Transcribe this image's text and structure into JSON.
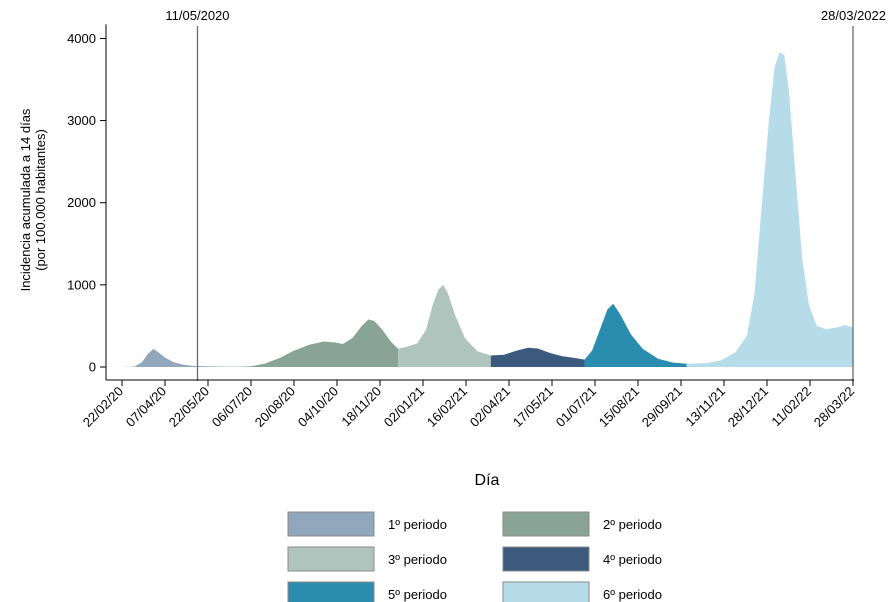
{
  "chart_data": {
    "type": "area",
    "xlabel": "Día",
    "ylabel_lines": [
      "Incidencia acumulada a 14 días",
      "(por 100.000 habitantes)"
    ],
    "ylim": [
      0,
      4200
    ],
    "yticks": [
      0,
      1000,
      2000,
      3000,
      4000
    ],
    "xlim": [
      "2020-02-22",
      "2022-03-28"
    ],
    "xticks": [
      {
        "date": "2020-02-22",
        "label": "22/02/20"
      },
      {
        "date": "2020-04-07",
        "label": "07/04/20"
      },
      {
        "date": "2020-05-22",
        "label": "22/05/20"
      },
      {
        "date": "2020-07-06",
        "label": "06/07/20"
      },
      {
        "date": "2020-08-20",
        "label": "20/08/20"
      },
      {
        "date": "2020-10-04",
        "label": "04/10/20"
      },
      {
        "date": "2020-11-18",
        "label": "18/11/20"
      },
      {
        "date": "2021-01-02",
        "label": "02/01/21"
      },
      {
        "date": "2021-02-16",
        "label": "16/02/21"
      },
      {
        "date": "2021-04-02",
        "label": "02/04/21"
      },
      {
        "date": "2021-05-17",
        "label": "17/05/21"
      },
      {
        "date": "2021-07-01",
        "label": "01/07/21"
      },
      {
        "date": "2021-08-15",
        "label": "15/08/21"
      },
      {
        "date": "2021-09-29",
        "label": "29/09/21"
      },
      {
        "date": "2021-11-13",
        "label": "13/11/21"
      },
      {
        "date": "2021-12-28",
        "label": "28/12/21"
      },
      {
        "date": "2022-02-11",
        "label": "11/02/22"
      },
      {
        "date": "2022-03-28",
        "label": "28/03/22"
      }
    ],
    "vlines": [
      {
        "date": "2020-05-11",
        "label": "11/05/2020"
      },
      {
        "date": "2022-03-28",
        "label": "28/03/2022"
      }
    ],
    "legend_position": "bottom",
    "series": [
      {
        "name": "1º periodo",
        "color": "#93a7bc",
        "points": [
          [
            "2020-02-22",
            0
          ],
          [
            "2020-03-06",
            5
          ],
          [
            "2020-03-14",
            60
          ],
          [
            "2020-03-20",
            160
          ],
          [
            "2020-03-26",
            220
          ],
          [
            "2020-03-31",
            180
          ],
          [
            "2020-04-07",
            115
          ],
          [
            "2020-04-16",
            60
          ],
          [
            "2020-04-25",
            30
          ],
          [
            "2020-05-05",
            15
          ],
          [
            "2020-05-11",
            12
          ],
          [
            "2020-05-20",
            8
          ],
          [
            "2020-06-15",
            4
          ],
          [
            "2020-06-21",
            3
          ]
        ]
      },
      {
        "name": "2º periodo",
        "color": "#89a397",
        "points": [
          [
            "2020-06-21",
            3
          ],
          [
            "2020-07-06",
            8
          ],
          [
            "2020-07-20",
            40
          ],
          [
            "2020-08-05",
            110
          ],
          [
            "2020-08-20",
            200
          ],
          [
            "2020-09-05",
            270
          ],
          [
            "2020-09-20",
            310
          ],
          [
            "2020-10-02",
            300
          ],
          [
            "2020-10-10",
            280
          ],
          [
            "2020-10-20",
            350
          ],
          [
            "2020-10-30",
            500
          ],
          [
            "2020-11-06",
            580
          ],
          [
            "2020-11-12",
            560
          ],
          [
            "2020-11-20",
            460
          ],
          [
            "2020-11-30",
            300
          ],
          [
            "2020-12-07",
            220
          ]
        ]
      },
      {
        "name": "3º periodo",
        "color": "#aec4bd",
        "points": [
          [
            "2020-12-07",
            220
          ],
          [
            "2020-12-17",
            250
          ],
          [
            "2020-12-27",
            290
          ],
          [
            "2021-01-05",
            450
          ],
          [
            "2021-01-12",
            750
          ],
          [
            "2021-01-18",
            940
          ],
          [
            "2021-01-23",
            1000
          ],
          [
            "2021-01-28",
            900
          ],
          [
            "2021-02-05",
            620
          ],
          [
            "2021-02-15",
            350
          ],
          [
            "2021-02-28",
            190
          ],
          [
            "2021-03-14",
            140
          ]
        ]
      },
      {
        "name": "4º periodo",
        "color": "#3c5a7e",
        "points": [
          [
            "2021-03-14",
            140
          ],
          [
            "2021-03-28",
            150
          ],
          [
            "2021-04-10",
            200
          ],
          [
            "2021-04-22",
            235
          ],
          [
            "2021-05-02",
            225
          ],
          [
            "2021-05-15",
            170
          ],
          [
            "2021-05-28",
            130
          ],
          [
            "2021-06-10",
            110
          ],
          [
            "2021-06-20",
            90
          ]
        ]
      },
      {
        "name": "5º periodo",
        "color": "#2a8db0",
        "points": [
          [
            "2021-06-20",
            90
          ],
          [
            "2021-06-28",
            200
          ],
          [
            "2021-07-06",
            450
          ],
          [
            "2021-07-14",
            700
          ],
          [
            "2021-07-20",
            770
          ],
          [
            "2021-07-27",
            650
          ],
          [
            "2021-08-08",
            390
          ],
          [
            "2021-08-20",
            220
          ],
          [
            "2021-09-05",
            100
          ],
          [
            "2021-09-20",
            55
          ],
          [
            "2021-10-05",
            40
          ]
        ]
      },
      {
        "name": "6º periodo",
        "color": "#b5dce8",
        "points": [
          [
            "2021-10-05",
            40
          ],
          [
            "2021-10-25",
            45
          ],
          [
            "2021-11-10",
            80
          ],
          [
            "2021-11-25",
            180
          ],
          [
            "2021-12-07",
            380
          ],
          [
            "2021-12-15",
            900
          ],
          [
            "2021-12-22",
            1900
          ],
          [
            "2021-12-30",
            3000
          ],
          [
            "2022-01-05",
            3650
          ],
          [
            "2022-01-10",
            3830
          ],
          [
            "2022-01-15",
            3800
          ],
          [
            "2022-01-20",
            3350
          ],
          [
            "2022-01-27",
            2300
          ],
          [
            "2022-02-03",
            1300
          ],
          [
            "2022-02-10",
            750
          ],
          [
            "2022-02-18",
            500
          ],
          [
            "2022-02-28",
            460
          ],
          [
            "2022-03-10",
            480
          ],
          [
            "2022-03-20",
            510
          ],
          [
            "2022-03-28",
            480
          ]
        ]
      }
    ]
  }
}
